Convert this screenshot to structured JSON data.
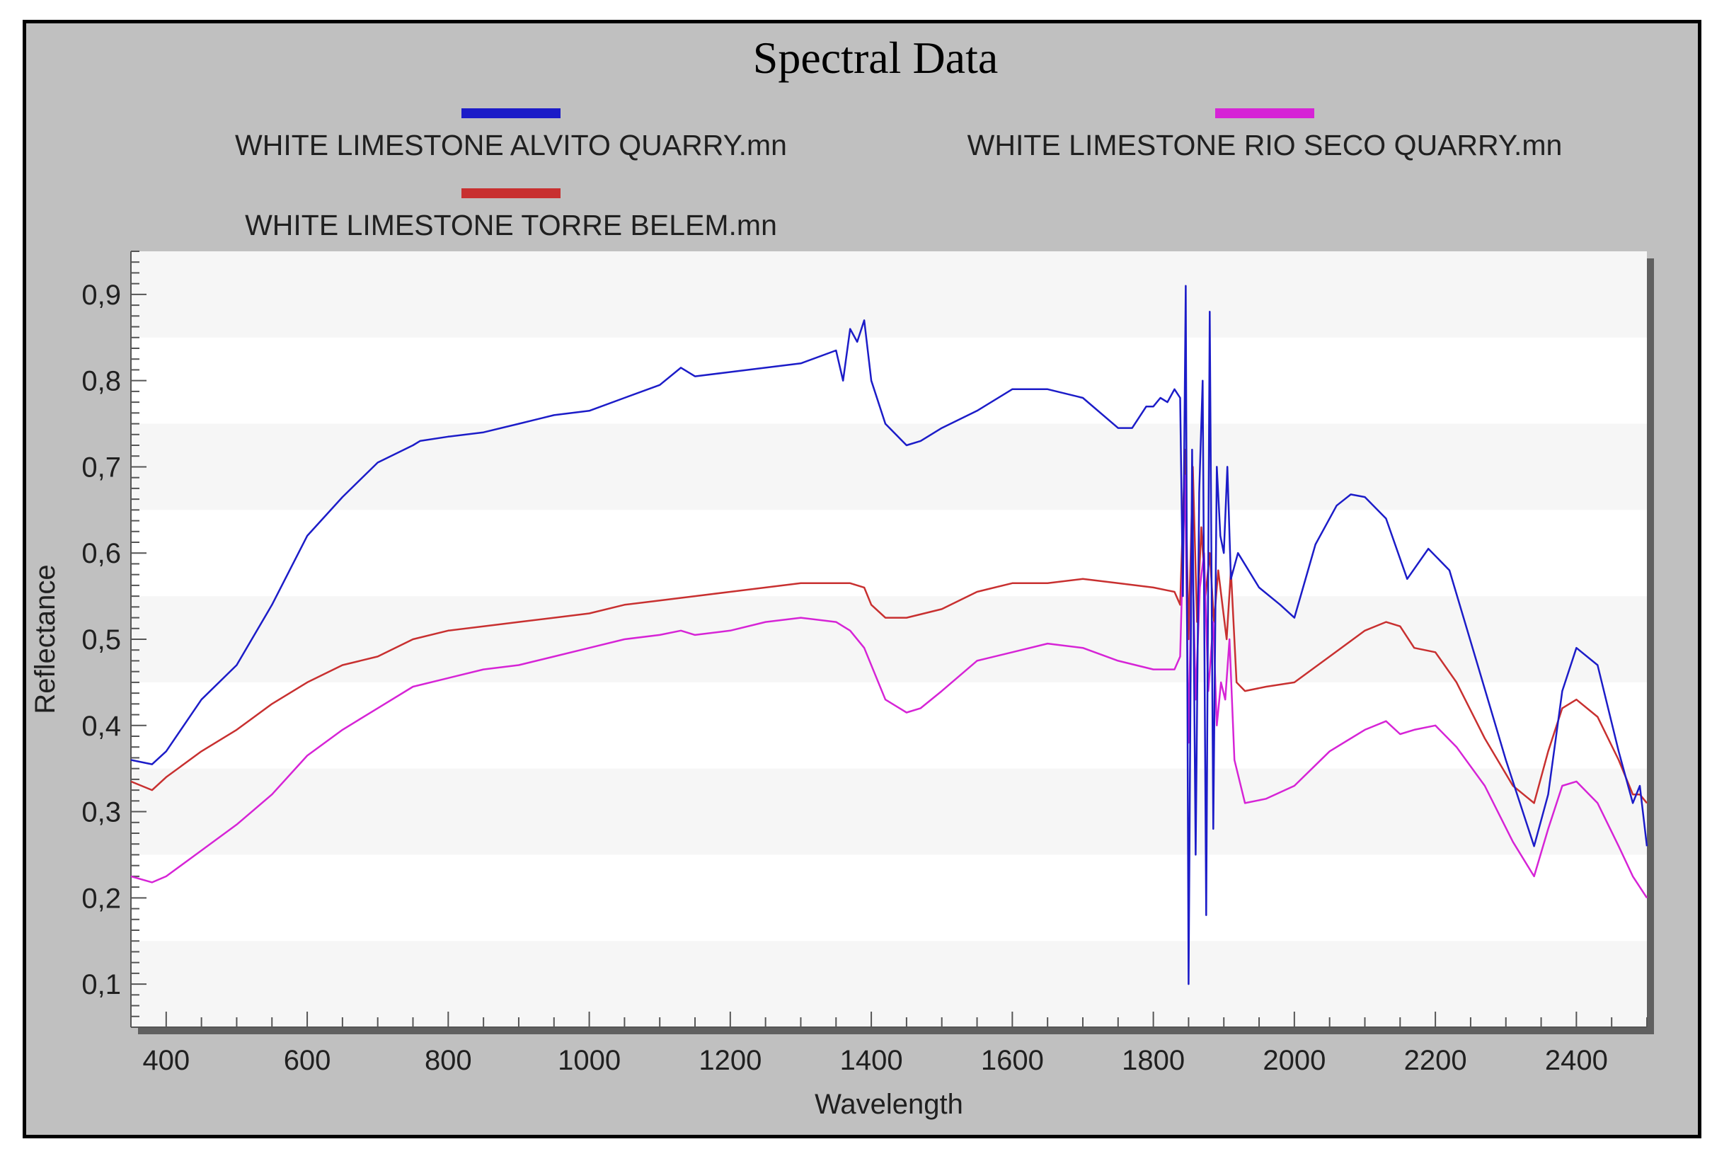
{
  "chart_data": {
    "type": "line",
    "title": "Spectral Data",
    "xlabel": "Wavelength",
    "ylabel": "Reflectance",
    "xlim": [
      350,
      2500
    ],
    "ylim": [
      0.05,
      0.95
    ],
    "xticks": [
      400,
      600,
      800,
      1000,
      1200,
      1400,
      1600,
      1800,
      2000,
      2200,
      2400
    ],
    "xtick_labels": [
      "400",
      "600",
      "800",
      "1000",
      "1200",
      "1400",
      "1600",
      "1800",
      "2000",
      "2200",
      "2400"
    ],
    "yticks": [
      0.1,
      0.2,
      0.3,
      0.4,
      0.5,
      0.6,
      0.7,
      0.8,
      0.9
    ],
    "ytick_labels": [
      "0,1",
      "0,2",
      "0,3",
      "0,4",
      "0,5",
      "0,6",
      "0,7",
      "0,8",
      "0,9"
    ],
    "grid": "horizontal bands",
    "legend_position": "top",
    "series": [
      {
        "name": "WHITE LIMESTONE ALVITO QUARRY.mn",
        "color": "#1c1cc8",
        "x": [
          350,
          380,
          400,
          450,
          500,
          550,
          600,
          650,
          700,
          750,
          760,
          800,
          850,
          900,
          950,
          1000,
          1050,
          1100,
          1130,
          1150,
          1200,
          1250,
          1300,
          1350,
          1360,
          1370,
          1380,
          1390,
          1400,
          1420,
          1450,
          1470,
          1500,
          1550,
          1600,
          1650,
          1700,
          1750,
          1770,
          1790,
          1800,
          1810,
          1820,
          1830,
          1838,
          1842,
          1846,
          1850,
          1855,
          1860,
          1865,
          1870,
          1875,
          1880,
          1885,
          1890,
          1895,
          1900,
          1905,
          1910,
          1920,
          1950,
          1980,
          2000,
          2030,
          2060,
          2080,
          2100,
          2130,
          2160,
          2190,
          2220,
          2260,
          2300,
          2340,
          2360,
          2380,
          2400,
          2430,
          2460,
          2480,
          2490,
          2500
        ],
        "y": [
          0.36,
          0.355,
          0.37,
          0.43,
          0.47,
          0.54,
          0.62,
          0.665,
          0.705,
          0.725,
          0.73,
          0.735,
          0.74,
          0.75,
          0.76,
          0.765,
          0.78,
          0.795,
          0.815,
          0.805,
          0.81,
          0.815,
          0.82,
          0.835,
          0.8,
          0.86,
          0.845,
          0.87,
          0.8,
          0.75,
          0.725,
          0.73,
          0.745,
          0.765,
          0.79,
          0.79,
          0.78,
          0.745,
          0.745,
          0.77,
          0.77,
          0.78,
          0.775,
          0.79,
          0.78,
          0.55,
          0.91,
          0.1,
          0.72,
          0.25,
          0.67,
          0.8,
          0.18,
          0.88,
          0.28,
          0.7,
          0.62,
          0.6,
          0.7,
          0.57,
          0.6,
          0.56,
          0.54,
          0.525,
          0.61,
          0.655,
          0.668,
          0.665,
          0.64,
          0.57,
          0.605,
          0.58,
          0.47,
          0.36,
          0.26,
          0.32,
          0.44,
          0.49,
          0.47,
          0.37,
          0.31,
          0.33,
          0.26
        ]
      },
      {
        "name": "WHITE LIMESTONE RIO SECO QUARRY.mn",
        "color": "#d624d6",
        "x": [
          350,
          380,
          400,
          450,
          500,
          550,
          600,
          650,
          700,
          750,
          800,
          850,
          900,
          950,
          1000,
          1050,
          1100,
          1130,
          1150,
          1200,
          1250,
          1300,
          1350,
          1370,
          1390,
          1420,
          1450,
          1470,
          1500,
          1550,
          1600,
          1650,
          1700,
          1750,
          1800,
          1830,
          1838,
          1845,
          1850,
          1855,
          1860,
          1866,
          1872,
          1878,
          1885,
          1890,
          1896,
          1902,
          1908,
          1915,
          1930,
          1960,
          2000,
          2050,
          2100,
          2130,
          2150,
          2170,
          2200,
          2230,
          2270,
          2310,
          2340,
          2360,
          2380,
          2400,
          2430,
          2460,
          2480,
          2500
        ],
        "y": [
          0.225,
          0.218,
          0.225,
          0.255,
          0.285,
          0.32,
          0.365,
          0.395,
          0.42,
          0.445,
          0.455,
          0.465,
          0.47,
          0.48,
          0.49,
          0.5,
          0.505,
          0.51,
          0.505,
          0.51,
          0.52,
          0.525,
          0.52,
          0.51,
          0.49,
          0.43,
          0.415,
          0.42,
          0.44,
          0.475,
          0.485,
          0.495,
          0.49,
          0.475,
          0.465,
          0.465,
          0.48,
          0.69,
          0.38,
          0.62,
          0.43,
          0.56,
          0.6,
          0.44,
          0.52,
          0.4,
          0.45,
          0.43,
          0.5,
          0.36,
          0.31,
          0.315,
          0.33,
          0.37,
          0.395,
          0.405,
          0.39,
          0.395,
          0.4,
          0.375,
          0.33,
          0.265,
          0.225,
          0.28,
          0.33,
          0.335,
          0.31,
          0.26,
          0.225,
          0.2
        ]
      },
      {
        "name": "WHITE LIMESTONE TORRE BELEM.mn",
        "color": "#c83030",
        "x": [
          350,
          380,
          400,
          450,
          500,
          550,
          600,
          650,
          700,
          750,
          800,
          850,
          900,
          950,
          1000,
          1050,
          1100,
          1150,
          1200,
          1250,
          1300,
          1350,
          1370,
          1390,
          1400,
          1420,
          1450,
          1500,
          1550,
          1600,
          1650,
          1700,
          1750,
          1800,
          1830,
          1838,
          1845,
          1850,
          1856,
          1862,
          1868,
          1874,
          1880,
          1886,
          1892,
          1898,
          1904,
          1910,
          1918,
          1930,
          1960,
          2000,
          2050,
          2100,
          2130,
          2150,
          2170,
          2200,
          2230,
          2270,
          2310,
          2340,
          2360,
          2380,
          2400,
          2430,
          2460,
          2480,
          2490,
          2500
        ],
        "y": [
          0.335,
          0.325,
          0.34,
          0.37,
          0.395,
          0.425,
          0.45,
          0.47,
          0.48,
          0.5,
          0.51,
          0.515,
          0.52,
          0.525,
          0.53,
          0.54,
          0.545,
          0.55,
          0.555,
          0.56,
          0.565,
          0.565,
          0.565,
          0.56,
          0.54,
          0.525,
          0.525,
          0.535,
          0.555,
          0.565,
          0.565,
          0.57,
          0.565,
          0.56,
          0.555,
          0.54,
          0.72,
          0.5,
          0.7,
          0.52,
          0.63,
          0.55,
          0.6,
          0.52,
          0.58,
          0.54,
          0.5,
          0.58,
          0.45,
          0.44,
          0.445,
          0.45,
          0.48,
          0.51,
          0.52,
          0.515,
          0.49,
          0.485,
          0.45,
          0.385,
          0.33,
          0.31,
          0.37,
          0.42,
          0.43,
          0.41,
          0.36,
          0.32,
          0.32,
          0.31
        ]
      }
    ]
  }
}
